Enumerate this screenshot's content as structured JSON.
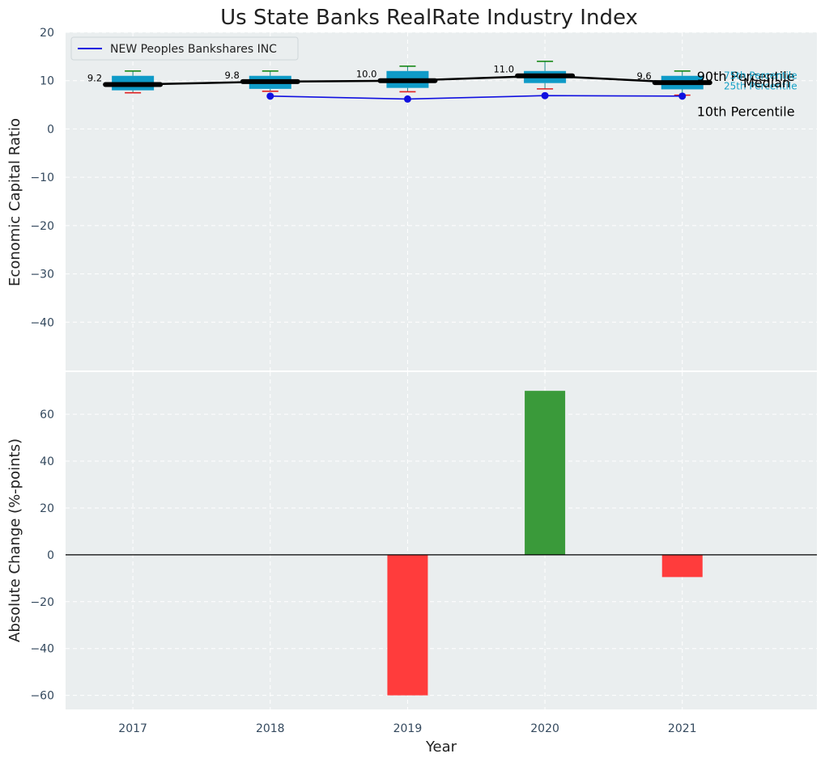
{
  "colors": {
    "panel_bg": "#eaeeef",
    "grid": "#ffffff",
    "box_fill": "#0f9bc8",
    "median_line": "#000000",
    "company_line": "#1010e0",
    "whisker_high": "#1a8a1a",
    "whisker_low": "#e02020",
    "bar_positive": "#3a9a3a",
    "bar_negative": "#ff3c3c",
    "zero_line": "#000000",
    "quartile_text": "#17a2c8"
  },
  "chart_data": [
    {
      "type": "box",
      "title": "Us State Banks RealRate Industry Index",
      "ylabel": "Economic Capital Ratio",
      "ylim": [
        -50,
        20
      ],
      "yticks": [
        20,
        10,
        0,
        -10,
        -20,
        -30,
        -40
      ],
      "ytick_labels": [
        "20",
        "10",
        "0",
        "−10",
        "−20",
        "−30",
        "−40"
      ],
      "categories": [
        "2017",
        "2018",
        "2019",
        "2020",
        "2021"
      ],
      "x": [
        2017,
        2018,
        2019,
        2020,
        2021
      ],
      "p10": [
        7.5,
        7.8,
        7.7,
        8.3,
        7.0
      ],
      "p25": [
        8.0,
        8.3,
        8.5,
        9.5,
        8.2
      ],
      "median": [
        9.2,
        9.8,
        10.0,
        11.0,
        9.6
      ],
      "median_labels": [
        "9.2",
        "9.8",
        "10.0",
        "11.0",
        "9.6"
      ],
      "p75": [
        11.0,
        11.0,
        12.0,
        12.0,
        11.0
      ],
      "p90": [
        12.0,
        12.0,
        13.0,
        14.0,
        12.0
      ],
      "series": [
        {
          "name": "NEW Peoples Bankshares INC",
          "x": [
            2018,
            2019,
            2020,
            2021
          ],
          "values": [
            6.8,
            6.2,
            6.9,
            6.8
          ]
        }
      ],
      "legend_position": "upper-left",
      "percentile_labels": {
        "p90": "90th Percentile",
        "p75": "75th Percentile",
        "median": "Median",
        "p25": "25th Percentile",
        "p10": "10th Percentile"
      },
      "grid": true
    },
    {
      "type": "bar",
      "ylabel": "Absolute Change (%-points)",
      "xlabel": "Year",
      "ylim": [
        -66,
        78
      ],
      "yticks": [
        60,
        40,
        20,
        0,
        -20,
        -40,
        -60
      ],
      "ytick_labels": [
        "60",
        "40",
        "20",
        "0",
        "−20",
        "−40",
        "−60"
      ],
      "categories": [
        "2017",
        "2018",
        "2019",
        "2020",
        "2021"
      ],
      "x": [
        2019,
        2020,
        2021
      ],
      "values": [
        -60,
        70,
        -9.5
      ],
      "grid": true
    }
  ]
}
